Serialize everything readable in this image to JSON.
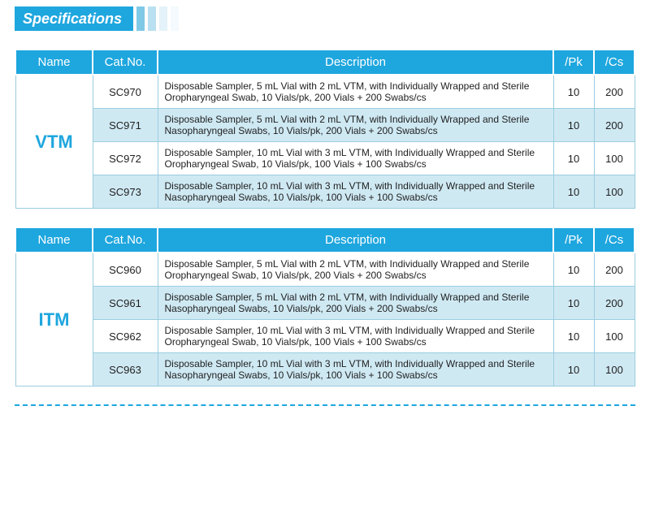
{
  "header": {
    "title": "Specifications",
    "title_bg": "#1ea6de",
    "title_color": "#ffffff",
    "bars": [
      "#7fc9e6",
      "#b9e0f0",
      "#e4f2f9",
      "#f4fafd"
    ]
  },
  "table_style": {
    "header_bg": "#1ea6de",
    "header_color": "#ffffff",
    "border_color": "#9bcde0",
    "alt_row_bg": "#cfe9f3",
    "name_color": "#1ea6de",
    "font_size_header": 15,
    "font_size_body": 12,
    "font_size_name": 22
  },
  "columns": {
    "name": "Name",
    "cat": "Cat.No.",
    "desc": "Description",
    "pk": "/Pk",
    "cs": "/Cs"
  },
  "tables": [
    {
      "name": "VTM",
      "rows": [
        {
          "cat": "SC970",
          "desc": "Disposable Sampler, 5 mL Vial with 2 mL VTM, with Individually Wrapped and Sterile Oropharyngeal Swab, 10 Vials/pk, 200 Vials + 200 Swabs/cs",
          "pk": "10",
          "cs": "200"
        },
        {
          "cat": "SC971",
          "desc": "Disposable Sampler, 5 mL Vial with 2 mL VTM, with Individually Wrapped and Sterile Nasopharyngeal Swabs, 10 Vials/pk, 200 Vials + 200 Swabs/cs",
          "pk": "10",
          "cs": "200"
        },
        {
          "cat": "SC972",
          "desc": "Disposable Sampler, 10 mL Vial with 3 mL VTM, with Individually Wrapped and Sterile Oropharyngeal Swab, 10 Vials/pk, 100 Vials + 100 Swabs/cs",
          "pk": "10",
          "cs": "100"
        },
        {
          "cat": "SC973",
          "desc": "Disposable Sampler, 10 mL Vial with 3 mL VTM, with Individually Wrapped and Sterile Nasopharyngeal Swabs, 10 Vials/pk, 100 Vials + 100 Swabs/cs",
          "pk": "10",
          "cs": "100"
        }
      ]
    },
    {
      "name": "ITM",
      "rows": [
        {
          "cat": "SC960",
          "desc": "Disposable Sampler, 5 mL Vial with 2 mL VTM, with Individually Wrapped and Sterile Oropharyngeal Swab, 10 Vials/pk, 200 Vials + 200 Swabs/cs",
          "pk": "10",
          "cs": "200"
        },
        {
          "cat": "SC961",
          "desc": "Disposable Sampler, 5 mL Vial with 2 mL VTM, with Individually Wrapped and Sterile Nasopharyngeal Swabs, 10 Vials/pk, 200 Vials + 200 Swabs/cs",
          "pk": "10",
          "cs": "200"
        },
        {
          "cat": "SC962",
          "desc": "Disposable Sampler, 10 mL Vial with 3 mL VTM, with Individually Wrapped and Sterile Oropharyngeal Swab, 10 Vials/pk, 100 Vials + 100 Swabs/cs",
          "pk": "10",
          "cs": "100"
        },
        {
          "cat": "SC963",
          "desc": "Disposable Sampler, 10 mL Vial with 3 mL VTM, with Individually Wrapped and Sterile Nasopharyngeal Swabs, 10 Vials/pk, 100 Vials + 100 Swabs/cs",
          "pk": "10",
          "cs": "100"
        }
      ]
    }
  ],
  "divider_color": "#1ea6de"
}
